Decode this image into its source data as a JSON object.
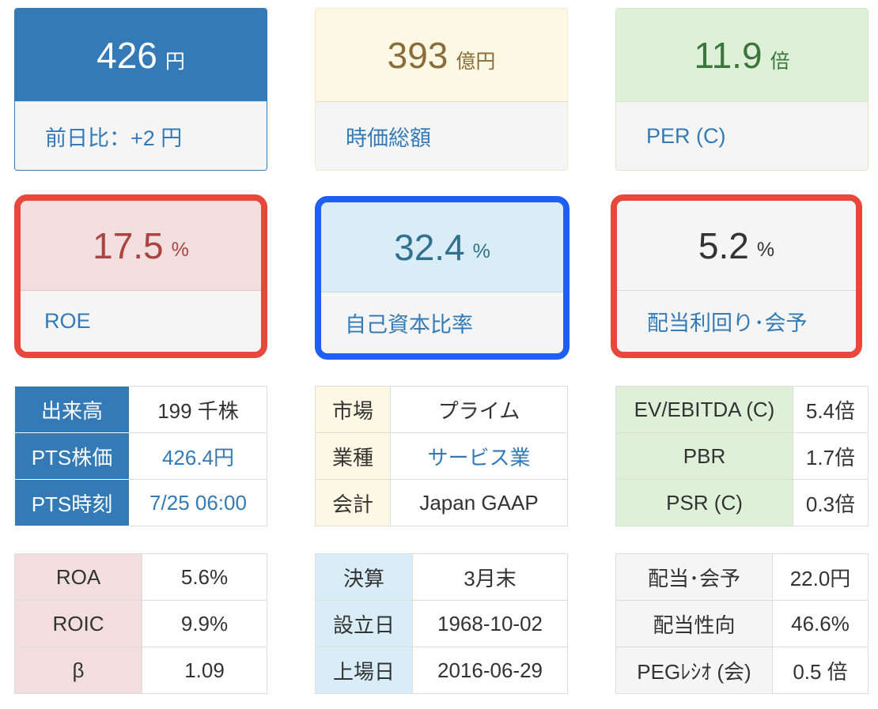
{
  "cards": {
    "price": {
      "value": "426",
      "unit": "円",
      "label": "前日比：+2 円"
    },
    "market_cap": {
      "value": "393",
      "unit": "億円",
      "label": "時価総額"
    },
    "per": {
      "value": "11.9",
      "unit": "倍",
      "label": "PER (C)"
    },
    "roe": {
      "value": "17.5",
      "unit": "%",
      "label": "ROE"
    },
    "equity_ratio": {
      "value": "32.4",
      "unit": "%",
      "label": "自己資本比率"
    },
    "dividend_yield": {
      "value": "5.2",
      "unit": "%",
      "label": "配当利回り･会予"
    }
  },
  "tables": {
    "trading": [
      {
        "label": "出来高",
        "value": "199 千株"
      },
      {
        "label": "PTS株価",
        "value": "426.4円"
      },
      {
        "label": "PTS時刻",
        "value": "7/25 06:00"
      }
    ],
    "profile": [
      {
        "label": "市場",
        "value": "プライム"
      },
      {
        "label": "業種",
        "value": "サービス業"
      },
      {
        "label": "会計",
        "value": "Japan GAAP"
      }
    ],
    "valuation": [
      {
        "label": "EV/EBITDA (C)",
        "value": "5.4倍"
      },
      {
        "label": "PBR",
        "value": "1.7倍"
      },
      {
        "label": "PSR (C)",
        "value": "0.3倍"
      }
    ],
    "returns": [
      {
        "label": "ROA",
        "value": "5.6%"
      },
      {
        "label": "ROIC",
        "value": "9.9%"
      },
      {
        "label": "β",
        "value": "1.09"
      }
    ],
    "company": [
      {
        "label": "決算",
        "value": "3月末"
      },
      {
        "label": "設立日",
        "value": "1968-10-02"
      },
      {
        "label": "上場日",
        "value": "2016-06-29"
      }
    ],
    "dividend": [
      {
        "label": "配当･会予",
        "value": "22.0円"
      },
      {
        "label": "配当性向",
        "value": "46.6%"
      },
      {
        "label": "PEGﾚｼｵ (会)",
        "value": "0.5 倍"
      }
    ]
  },
  "highlight_colors": {
    "red": "#e8473c",
    "blue": "#1f5ff5"
  }
}
